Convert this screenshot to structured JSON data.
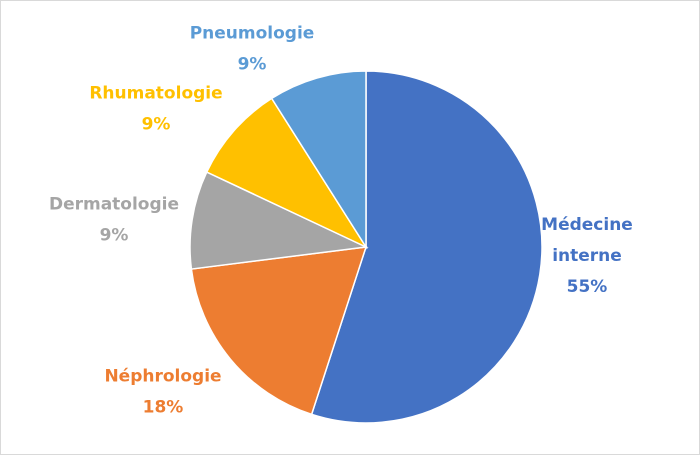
{
  "chart_data": {
    "type": "pie",
    "slices": [
      {
        "name": "Médecine interne",
        "name_lines": [
          "Médecine",
          "interne"
        ],
        "value": 55,
        "value_label": "55%",
        "color": "#4472C4"
      },
      {
        "name": "Néphrologie",
        "name_lines": [
          "Néphrologie"
        ],
        "value": 18,
        "value_label": "18%",
        "color": "#ED7D31"
      },
      {
        "name": "Dermatologie",
        "name_lines": [
          "Dermatologie"
        ],
        "value": 9,
        "value_label": "9%",
        "color": "#A5A5A5"
      },
      {
        "name": "Rhumatologie",
        "name_lines": [
          "Rhumatologie"
        ],
        "value": 9,
        "value_label": "9%",
        "color": "#FFC000"
      },
      {
        "name": "Pneumologie",
        "name_lines": [
          "Pneumologie"
        ],
        "value": 9,
        "value_label": "9%",
        "color": "#5B9BD5"
      }
    ],
    "legend": "none",
    "data_labels": "outside, category and percentage"
  }
}
